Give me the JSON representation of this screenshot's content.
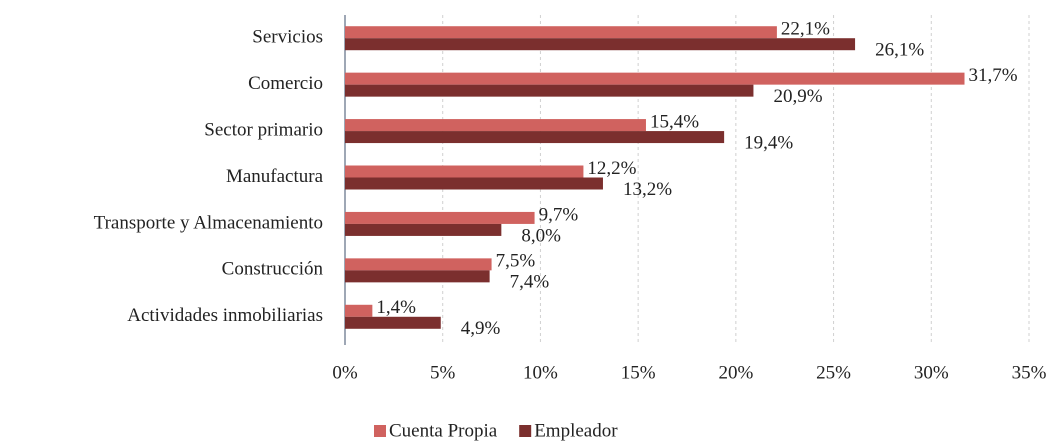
{
  "chart_data": {
    "type": "barh",
    "categories": [
      "Servicios",
      "Comercio",
      "Sector primario",
      "Manufactura",
      "Transporte y Almacenamiento",
      "Construcción",
      "Actividades inmobiliarias"
    ],
    "series": [
      {
        "name": "Cuenta Propia",
        "color": "#d0625f",
        "values": [
          22.1,
          31.7,
          15.4,
          12.2,
          9.7,
          7.5,
          1.4
        ],
        "value_labels": [
          "22,1%",
          "31,7%",
          "15,4%",
          "12,2%",
          "9,7%",
          "7,5%",
          "1,4%"
        ]
      },
      {
        "name": "Empleador",
        "color": "#7b2f2e",
        "values": [
          26.1,
          20.9,
          19.4,
          13.2,
          8.0,
          7.4,
          4.9
        ],
        "value_labels": [
          "26,1%",
          "20,9%",
          "19,4%",
          "13,2%",
          "8,0%",
          "7,4%",
          "4,9%"
        ]
      }
    ],
    "xlim": [
      0,
      35
    ],
    "xticks": [
      {
        "value": 0,
        "label": "0%"
      },
      {
        "value": 5,
        "label": "5%"
      },
      {
        "value": 10,
        "label": "10%"
      },
      {
        "value": 15,
        "label": "15%"
      },
      {
        "value": 20,
        "label": "20%"
      },
      {
        "value": 25,
        "label": "25%"
      },
      {
        "value": 30,
        "label": "30%"
      },
      {
        "value": 35,
        "label": "35%"
      }
    ],
    "grid": true,
    "legend": "bottom"
  }
}
